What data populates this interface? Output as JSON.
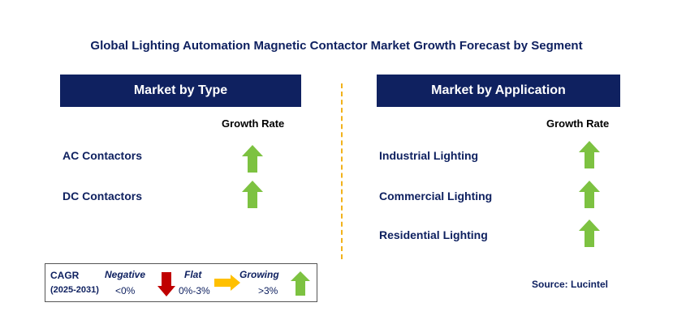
{
  "title": "Global Lighting Automation Magnetic Contactor Market Growth Forecast by Segment",
  "left_panel": {
    "header": "Market by Type",
    "growth_label": "Growth Rate",
    "rows": [
      {
        "label": "AC Contactors",
        "trend": "growing"
      },
      {
        "label": "DC Contactors",
        "trend": "growing"
      }
    ]
  },
  "right_panel": {
    "header": "Market by Application",
    "growth_label": "Growth Rate",
    "rows": [
      {
        "label": "Industrial Lighting",
        "trend": "growing"
      },
      {
        "label": "Commercial Lighting",
        "trend": "growing"
      },
      {
        "label": "Residential Lighting",
        "trend": "growing"
      }
    ]
  },
  "legend": {
    "cagr": "CAGR",
    "period": "(2025-2031)",
    "negative": {
      "label": "Negative",
      "range": "<0%",
      "icon": "down-arrow-icon"
    },
    "flat": {
      "label": "Flat",
      "range": "0%-3%",
      "icon": "right-arrow-icon"
    },
    "growing": {
      "label": "Growing",
      "range": ">3%",
      "icon": "up-arrow-icon"
    }
  },
  "source": "Source: Lucintel",
  "colors": {
    "navy": "#0f2160",
    "green": "#7dc241",
    "red": "#c00000",
    "amber": "#ffc000",
    "divider": "#f2b21b"
  }
}
